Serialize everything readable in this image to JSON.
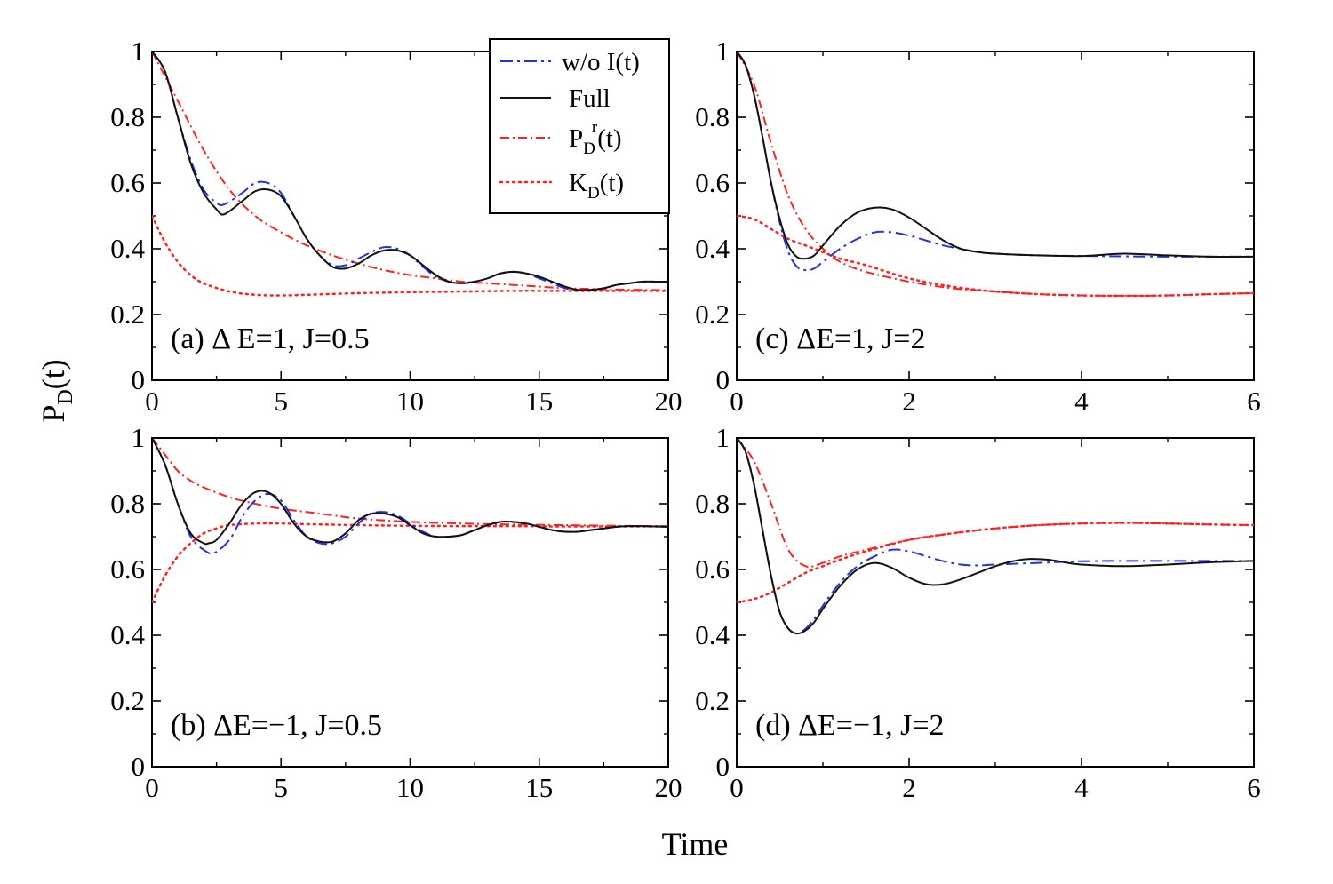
{
  "figure": {
    "ylabel": "P",
    "ylabel_sub": "D",
    "ylabel_suffix": "(t)",
    "xlabel": "Time"
  },
  "legend": {
    "entries": [
      {
        "name": "wo",
        "text": "w/o I(t)",
        "color": "#2233dd",
        "dash": "dashdot-blue"
      },
      {
        "name": "full",
        "text": "Full",
        "color": "#111111",
        "dash": "solid"
      },
      {
        "name": "pdr",
        "main": "P",
        "sub": "D",
        "sup": "r",
        "suffix": "(t)",
        "color": "#ff2020",
        "dash": "dashdot"
      },
      {
        "name": "kd",
        "main": "K",
        "sub": "D",
        "suffix": "(t)",
        "color": "#ff2020",
        "dash": "dotted"
      }
    ]
  },
  "chart_data": [
    {
      "id": "a",
      "type": "line",
      "label": "(a) Δ E=1, J=0.5",
      "xlim": [
        0,
        20
      ],
      "ylim": [
        0,
        1
      ],
      "xticks": [
        0,
        5,
        10,
        15,
        20
      ],
      "xtick_labels": [
        "0",
        "5",
        "10",
        "15",
        "20"
      ],
      "yticks": [
        0,
        0.2,
        0.4,
        0.6,
        0.8,
        1
      ],
      "ytick_labels": [
        "0",
        "0.2",
        "0.4",
        "0.6",
        "0.8",
        "1"
      ],
      "series": [
        {
          "name": "wo",
          "x": [
            0,
            0.5,
            1,
            1.5,
            2,
            2.5,
            2.8,
            3.5,
            4,
            4.5,
            5,
            5.5,
            6,
            6.5,
            7,
            7.5,
            8,
            8.5,
            9,
            9.5,
            10,
            10.5,
            11,
            11.5,
            12,
            12.5,
            13,
            13.5,
            14,
            14.5,
            15,
            15.5,
            16,
            16.5,
            17,
            17.5,
            18,
            18.5,
            19,
            19.5,
            20
          ],
          "y": [
            1,
            0.94,
            0.8,
            0.67,
            0.58,
            0.54,
            0.535,
            0.57,
            0.6,
            0.6,
            0.57,
            0.5,
            0.43,
            0.38,
            0.35,
            0.35,
            0.37,
            0.39,
            0.405,
            0.4,
            0.38,
            0.345,
            0.315,
            0.3,
            0.295,
            0.3,
            0.31,
            0.325,
            0.33,
            0.325,
            0.31,
            0.295,
            0.28,
            0.275,
            0.275,
            0.28,
            0.29,
            0.295,
            0.3,
            0.3,
            0.295
          ]
        },
        {
          "name": "full",
          "x": [
            0,
            0.5,
            1,
            1.5,
            2,
            2.5,
            2.8,
            3.5,
            4,
            4.5,
            5,
            5.5,
            6,
            6.5,
            7,
            7.5,
            8,
            8.5,
            9,
            9.5,
            10,
            10.5,
            11,
            11.5,
            12,
            12.5,
            13,
            13.5,
            14,
            14.5,
            15,
            15.5,
            16,
            16.5,
            17,
            17.5,
            18,
            18.5,
            19,
            19.5,
            20
          ],
          "y": [
            1,
            0.94,
            0.8,
            0.66,
            0.57,
            0.52,
            0.505,
            0.545,
            0.575,
            0.58,
            0.56,
            0.5,
            0.43,
            0.38,
            0.345,
            0.34,
            0.355,
            0.38,
            0.395,
            0.395,
            0.38,
            0.35,
            0.32,
            0.3,
            0.295,
            0.3,
            0.31,
            0.325,
            0.33,
            0.325,
            0.315,
            0.3,
            0.285,
            0.275,
            0.275,
            0.28,
            0.29,
            0.295,
            0.3,
            0.3,
            0.3
          ]
        },
        {
          "name": "pdr",
          "x": [
            0,
            1,
            2,
            3,
            4,
            5,
            6,
            7,
            8,
            9,
            10,
            11,
            12,
            13,
            14,
            15,
            16,
            17,
            18,
            19,
            20
          ],
          "y": [
            1,
            0.85,
            0.7,
            0.58,
            0.5,
            0.45,
            0.41,
            0.38,
            0.355,
            0.335,
            0.32,
            0.31,
            0.3,
            0.295,
            0.29,
            0.285,
            0.28,
            0.278,
            0.276,
            0.275,
            0.274
          ]
        },
        {
          "name": "kd",
          "x": [
            0,
            0.5,
            1,
            1.5,
            2,
            3,
            4,
            5,
            6,
            8,
            10,
            12,
            14,
            16,
            18,
            20
          ],
          "y": [
            0.5,
            0.42,
            0.36,
            0.32,
            0.295,
            0.27,
            0.26,
            0.258,
            0.26,
            0.265,
            0.268,
            0.27,
            0.272,
            0.272,
            0.272,
            0.272
          ]
        }
      ]
    },
    {
      "id": "c",
      "type": "line",
      "label": "(c) ΔE=1, J=2",
      "xlim": [
        0,
        6
      ],
      "ylim": [
        0,
        1
      ],
      "xticks": [
        0,
        2,
        4,
        6
      ],
      "xtick_labels": [
        "0",
        "2",
        "4",
        "6"
      ],
      "yticks": [
        0,
        0.2,
        0.4,
        0.6,
        0.8,
        1
      ],
      "ytick_labels": [
        "0",
        "0.2",
        "0.4",
        "0.6",
        "0.8",
        "1"
      ],
      "series": [
        {
          "name": "wo",
          "x": [
            0,
            0.1,
            0.2,
            0.3,
            0.4,
            0.5,
            0.6,
            0.7,
            0.8,
            0.9,
            1,
            1.2,
            1.4,
            1.6,
            1.8,
            2,
            2.2,
            2.4,
            2.6,
            2.8,
            3,
            3.5,
            4,
            4.5,
            5,
            5.5,
            6
          ],
          "y": [
            1,
            0.96,
            0.87,
            0.74,
            0.6,
            0.48,
            0.39,
            0.345,
            0.335,
            0.34,
            0.36,
            0.4,
            0.43,
            0.45,
            0.45,
            0.44,
            0.425,
            0.41,
            0.4,
            0.39,
            0.385,
            0.38,
            0.378,
            0.377,
            0.376,
            0.376,
            0.376
          ]
        },
        {
          "name": "full",
          "x": [
            0,
            0.1,
            0.2,
            0.3,
            0.4,
            0.5,
            0.6,
            0.7,
            0.8,
            0.9,
            1,
            1.2,
            1.4,
            1.6,
            1.8,
            2,
            2.2,
            2.4,
            2.6,
            2.8,
            3,
            3.5,
            4,
            4.5,
            5,
            5.5,
            6
          ],
          "y": [
            1,
            0.96,
            0.87,
            0.74,
            0.6,
            0.49,
            0.41,
            0.375,
            0.37,
            0.38,
            0.41,
            0.47,
            0.51,
            0.525,
            0.52,
            0.495,
            0.46,
            0.425,
            0.4,
            0.39,
            0.385,
            0.38,
            0.378,
            0.385,
            0.38,
            0.376,
            0.376
          ]
        },
        {
          "name": "pdr",
          "x": [
            0,
            0.2,
            0.4,
            0.6,
            0.8,
            1,
            1.2,
            1.5,
            2,
            2.5,
            3,
            3.5,
            4,
            4.5,
            5,
            5.5,
            6
          ],
          "y": [
            1,
            0.9,
            0.72,
            0.56,
            0.46,
            0.4,
            0.36,
            0.33,
            0.3,
            0.28,
            0.27,
            0.262,
            0.258,
            0.257,
            0.258,
            0.262,
            0.265
          ]
        },
        {
          "name": "kd",
          "x": [
            0,
            0.2,
            0.4,
            0.6,
            0.8,
            1,
            1.2,
            1.5,
            2,
            2.5,
            3,
            3.5,
            4,
            4.5,
            5,
            5.5,
            6
          ],
          "y": [
            0.5,
            0.49,
            0.46,
            0.43,
            0.41,
            0.39,
            0.37,
            0.35,
            0.31,
            0.285,
            0.27,
            0.262,
            0.258,
            0.257,
            0.258,
            0.262,
            0.265
          ]
        }
      ]
    },
    {
      "id": "b",
      "type": "line",
      "label": "(b) ΔE=−1, J=0.5",
      "xlim": [
        0,
        20
      ],
      "ylim": [
        0,
        1
      ],
      "xticks": [
        0,
        5,
        10,
        15,
        20
      ],
      "xtick_labels": [
        "0",
        "5",
        "10",
        "15",
        "20"
      ],
      "yticks": [
        0,
        0.2,
        0.4,
        0.6,
        0.8,
        1
      ],
      "ytick_labels": [
        "0",
        "0.2",
        "0.4",
        "0.6",
        "0.8",
        "1"
      ],
      "series": [
        {
          "name": "wo",
          "x": [
            0,
            0.5,
            1,
            1.5,
            2,
            2.4,
            3,
            3.5,
            4,
            4.5,
            5,
            5.5,
            6,
            6.5,
            7,
            7.5,
            8,
            8.5,
            9,
            9.5,
            10,
            10.5,
            11,
            11.5,
            12,
            12.5,
            13,
            13.5,
            14,
            14.5,
            15,
            15.5,
            16,
            16.5,
            17,
            17.5,
            18,
            18.5,
            19,
            19.5,
            20
          ],
          "y": [
            1,
            0.92,
            0.8,
            0.7,
            0.66,
            0.65,
            0.69,
            0.76,
            0.81,
            0.83,
            0.81,
            0.75,
            0.7,
            0.68,
            0.68,
            0.7,
            0.74,
            0.77,
            0.775,
            0.765,
            0.74,
            0.715,
            0.7,
            0.7,
            0.705,
            0.72,
            0.735,
            0.745,
            0.745,
            0.74,
            0.73,
            0.72,
            0.715,
            0.715,
            0.72,
            0.725,
            0.73,
            0.732,
            0.732,
            0.731,
            0.73
          ]
        },
        {
          "name": "full",
          "x": [
            0,
            0.5,
            1,
            1.5,
            2,
            2.2,
            2.5,
            3,
            3.5,
            4,
            4.5,
            5,
            5.5,
            6,
            6.5,
            7,
            7.5,
            8,
            8.5,
            9,
            9.5,
            10,
            10.5,
            11,
            11.5,
            12,
            12.5,
            13,
            13.5,
            14,
            14.5,
            15,
            15.5,
            16,
            16.5,
            17,
            17.5,
            18,
            18.5,
            19,
            19.5,
            20
          ],
          "y": [
            1,
            0.92,
            0.8,
            0.71,
            0.68,
            0.68,
            0.69,
            0.74,
            0.8,
            0.835,
            0.835,
            0.8,
            0.74,
            0.7,
            0.685,
            0.685,
            0.71,
            0.75,
            0.77,
            0.77,
            0.76,
            0.735,
            0.71,
            0.7,
            0.7,
            0.705,
            0.72,
            0.735,
            0.745,
            0.745,
            0.74,
            0.73,
            0.72,
            0.715,
            0.715,
            0.72,
            0.725,
            0.73,
            0.732,
            0.732,
            0.731,
            0.73
          ]
        },
        {
          "name": "pdr",
          "x": [
            0,
            0.5,
            1,
            1.5,
            2,
            3,
            4,
            5,
            6,
            7,
            8,
            10,
            12,
            14,
            16,
            18,
            20
          ],
          "y": [
            1,
            0.95,
            0.9,
            0.87,
            0.85,
            0.82,
            0.8,
            0.785,
            0.775,
            0.765,
            0.755,
            0.745,
            0.74,
            0.737,
            0.735,
            0.733,
            0.732
          ]
        },
        {
          "name": "kd",
          "x": [
            0,
            0.5,
            1,
            1.5,
            2,
            2.5,
            3,
            4,
            5,
            6,
            8,
            10,
            12,
            14,
            16,
            18,
            20
          ],
          "y": [
            0.5,
            0.58,
            0.64,
            0.68,
            0.71,
            0.725,
            0.735,
            0.74,
            0.74,
            0.738,
            0.735,
            0.733,
            0.732,
            0.732,
            0.731,
            0.731,
            0.731
          ]
        }
      ]
    },
    {
      "id": "d",
      "type": "line",
      "label": "(d) ΔE=−1, J=2",
      "xlim": [
        0,
        6
      ],
      "ylim": [
        0,
        1
      ],
      "xticks": [
        0,
        2,
        4,
        6
      ],
      "xtick_labels": [
        "0",
        "2",
        "4",
        "6"
      ],
      "yticks": [
        0,
        0.2,
        0.4,
        0.6,
        0.8,
        1
      ],
      "ytick_labels": [
        "0",
        "0.2",
        "0.4",
        "0.6",
        "0.8",
        "1"
      ],
      "series": [
        {
          "name": "wo",
          "x": [
            0,
            0.1,
            0.2,
            0.3,
            0.4,
            0.5,
            0.6,
            0.7,
            0.8,
            0.9,
            1,
            1.2,
            1.4,
            1.6,
            1.8,
            2,
            2.2,
            2.4,
            2.6,
            2.8,
            3,
            3.5,
            4,
            4.5,
            5,
            5.5,
            6
          ],
          "y": [
            1,
            0.96,
            0.86,
            0.72,
            0.58,
            0.47,
            0.42,
            0.405,
            0.42,
            0.45,
            0.49,
            0.56,
            0.61,
            0.64,
            0.66,
            0.655,
            0.64,
            0.625,
            0.615,
            0.612,
            0.615,
            0.62,
            0.625,
            0.626,
            0.626,
            0.626,
            0.626
          ]
        },
        {
          "name": "full",
          "x": [
            0,
            0.1,
            0.2,
            0.3,
            0.4,
            0.5,
            0.6,
            0.7,
            0.8,
            0.9,
            1,
            1.2,
            1.4,
            1.6,
            1.8,
            2,
            2.2,
            2.4,
            2.6,
            2.8,
            3,
            3.2,
            3.4,
            3.6,
            3.8,
            4,
            4.5,
            5,
            5.5,
            6
          ],
          "y": [
            1,
            0.96,
            0.86,
            0.72,
            0.58,
            0.47,
            0.42,
            0.405,
            0.415,
            0.44,
            0.48,
            0.55,
            0.6,
            0.62,
            0.605,
            0.575,
            0.555,
            0.555,
            0.57,
            0.59,
            0.61,
            0.625,
            0.632,
            0.63,
            0.622,
            0.615,
            0.61,
            0.615,
            0.622,
            0.626
          ]
        },
        {
          "name": "pdr",
          "x": [
            0,
            0.2,
            0.4,
            0.6,
            0.8,
            1,
            1.2,
            1.5,
            2,
            2.5,
            3,
            3.5,
            4,
            4.5,
            5,
            5.5,
            6
          ],
          "y": [
            1,
            0.93,
            0.8,
            0.66,
            0.61,
            0.62,
            0.64,
            0.66,
            0.69,
            0.71,
            0.725,
            0.735,
            0.74,
            0.742,
            0.74,
            0.737,
            0.735
          ]
        },
        {
          "name": "kd",
          "x": [
            0,
            0.2,
            0.4,
            0.6,
            0.8,
            1,
            1.2,
            1.5,
            2,
            2.5,
            3,
            3.5,
            4,
            4.5,
            5,
            5.5,
            6
          ],
          "y": [
            0.5,
            0.51,
            0.53,
            0.56,
            0.59,
            0.61,
            0.63,
            0.655,
            0.69,
            0.71,
            0.725,
            0.735,
            0.74,
            0.742,
            0.74,
            0.737,
            0.735
          ]
        }
      ]
    }
  ]
}
